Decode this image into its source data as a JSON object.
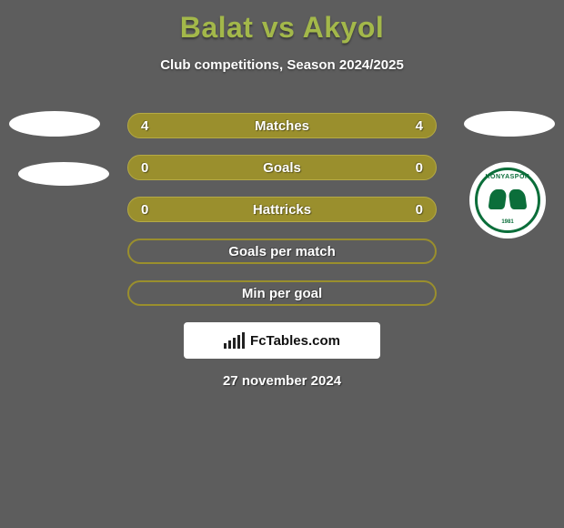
{
  "title": "Balat vs Akyol",
  "subtitle": "Club competitions, Season 2024/2025",
  "colors": {
    "background": "#5d5d5d",
    "accent": "#a3b84a",
    "row_fill": "#9a8f2d",
    "row_border": "#b5aa45",
    "text_white": "#ffffff",
    "club_green": "#0b6e3a"
  },
  "club_badge": {
    "top_text": "KONYASPOR",
    "year": "1981"
  },
  "rows": [
    {
      "label": "Matches",
      "left": "4",
      "right": "4",
      "style": "filled"
    },
    {
      "label": "Goals",
      "left": "0",
      "right": "0",
      "style": "filled"
    },
    {
      "label": "Hattricks",
      "left": "0",
      "right": "0",
      "style": "filled"
    },
    {
      "label": "Goals per match",
      "left": "",
      "right": "",
      "style": "outline"
    },
    {
      "label": "Min per goal",
      "left": "",
      "right": "",
      "style": "outline"
    }
  ],
  "footer_brand": "FcTables.com",
  "date": "27 november 2024"
}
